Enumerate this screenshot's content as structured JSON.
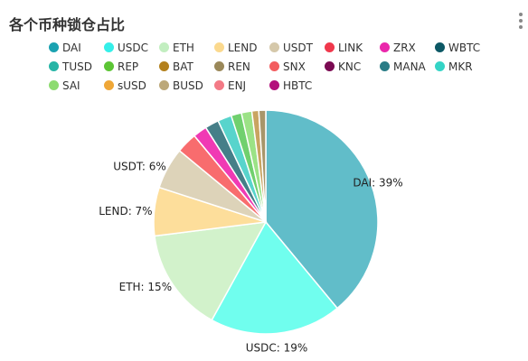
{
  "title": "各个币种锁仓占比",
  "menu_icon": "more-vertical-icon",
  "legend_rows": [
    [
      {
        "name": "DAI",
        "color": "#1aa2b1"
      },
      {
        "name": "USDC",
        "color": "#35efe9"
      },
      {
        "name": "ETH",
        "color": "#c2eec0"
      },
      {
        "name": "LEND",
        "color": "#fbd98e"
      },
      {
        "name": "USDT",
        "color": "#d5c8aa"
      },
      {
        "name": "LINK",
        "color": "#f0384c"
      },
      {
        "name": "ZRX",
        "color": "#ea27ab"
      },
      {
        "name": "WBTC",
        "color": "#0c5865"
      }
    ],
    [
      {
        "name": "TUSD",
        "color": "#26b5a6"
      },
      {
        "name": "REP",
        "color": "#5cc535"
      },
      {
        "name": "BAT",
        "color": "#b3801d"
      },
      {
        "name": "REN",
        "color": "#9a8859"
      },
      {
        "name": "SNX",
        "color": "#f35d5f"
      },
      {
        "name": "KNC",
        "color": "#7a0a52"
      },
      {
        "name": "MANA",
        "color": "#2a7c86"
      },
      {
        "name": "MKR",
        "color": "#34d4c6"
      }
    ],
    [
      {
        "name": "SAI",
        "color": "#8ddb70"
      },
      {
        "name": "sUSD",
        "color": "#efa737"
      },
      {
        "name": "BUSD",
        "color": "#bca879"
      },
      {
        "name": "ENJ",
        "color": "#f37a86"
      },
      {
        "name": "HBTC",
        "color": "#b3107c"
      }
    ]
  ],
  "chart_data": {
    "type": "pie",
    "start_angle_deg": 90,
    "direction": "clockwise",
    "slices": [
      {
        "name": "DAI",
        "value": 39,
        "color": "#61bdc9",
        "label": "DAI: 39%"
      },
      {
        "name": "USDC",
        "value": 19,
        "color": "#70feee",
        "label": "USDC: 19%"
      },
      {
        "name": "ETH",
        "value": 15,
        "color": "#d2f2cb",
        "label": "ETH: 15%"
      },
      {
        "name": "LEND",
        "value": 7,
        "color": "#fdde9b",
        "label": "LEND: 7%"
      },
      {
        "name": "USDT",
        "value": 6,
        "color": "#ddd3b9",
        "label": "USDT: 6%"
      },
      {
        "name": "SNX",
        "value": 3,
        "color": "#f86c6e",
        "label": ""
      },
      {
        "name": "ZRX",
        "value": 2,
        "color": "#f03ab4",
        "label": ""
      },
      {
        "name": "WBTC",
        "value": 2,
        "color": "#457f88",
        "label": ""
      },
      {
        "name": "MKR",
        "value": 2,
        "color": "#58d4cc",
        "label": ""
      },
      {
        "name": "REP",
        "value": 1.5,
        "color": "#70d06e",
        "label": ""
      },
      {
        "name": "SAI",
        "value": 1.5,
        "color": "#9be286",
        "label": ""
      },
      {
        "name": "BAT",
        "value": 1,
        "color": "#c9a461",
        "label": ""
      },
      {
        "name": "REN",
        "value": 1,
        "color": "#a8966a",
        "label": ""
      }
    ]
  }
}
